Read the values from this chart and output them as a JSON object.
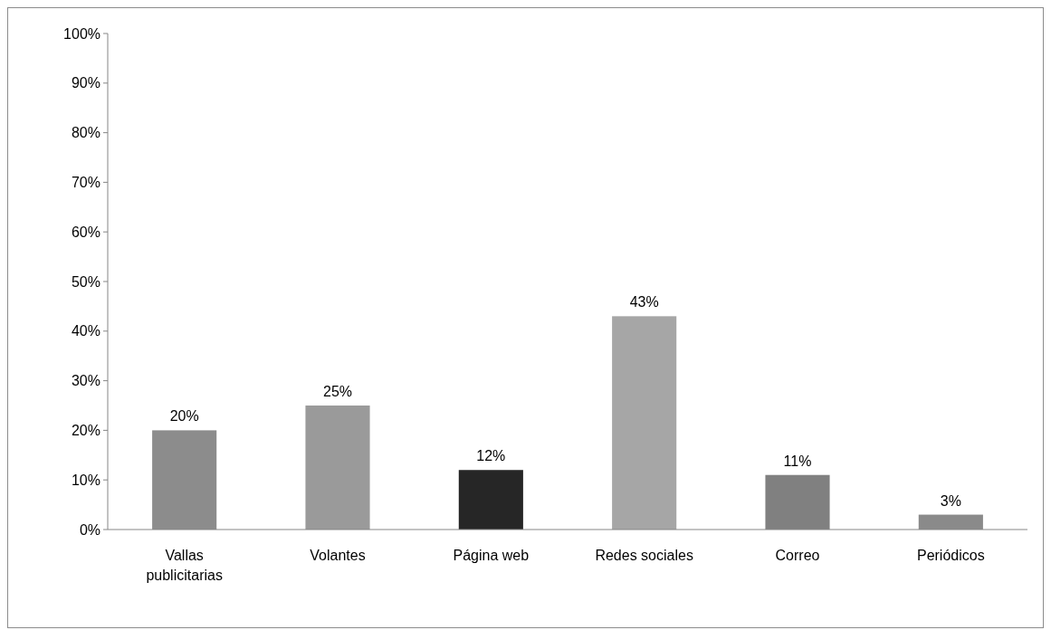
{
  "chart_data": {
    "type": "bar",
    "categories": [
      "Vallas publicitarias",
      "Volantes",
      "Página web",
      "Redes sociales",
      "Correo",
      "Periódicos"
    ],
    "values": [
      20,
      25,
      12,
      43,
      11,
      3
    ],
    "colors": [
      "#8c8c8c",
      "#9a9a9a",
      "#262626",
      "#a6a6a6",
      "#808080",
      "#8a8a8a"
    ],
    "value_labels": [
      "20%",
      "25%",
      "12%",
      "43%",
      "11%",
      "3%"
    ],
    "ylim": [
      0,
      100
    ],
    "yticks": [
      {
        "value": 0,
        "label": "0%"
      },
      {
        "value": 10,
        "label": "10%"
      },
      {
        "value": 20,
        "label": "20%"
      },
      {
        "value": 30,
        "label": "30%"
      },
      {
        "value": 40,
        "label": "40%"
      },
      {
        "value": 50,
        "label": "50%"
      },
      {
        "value": 60,
        "label": "60%"
      },
      {
        "value": 70,
        "label": "70%"
      },
      {
        "value": 80,
        "label": "80%"
      },
      {
        "value": 90,
        "label": "90%"
      },
      {
        "value": 100,
        "label": "100%"
      }
    ],
    "grid": false
  }
}
